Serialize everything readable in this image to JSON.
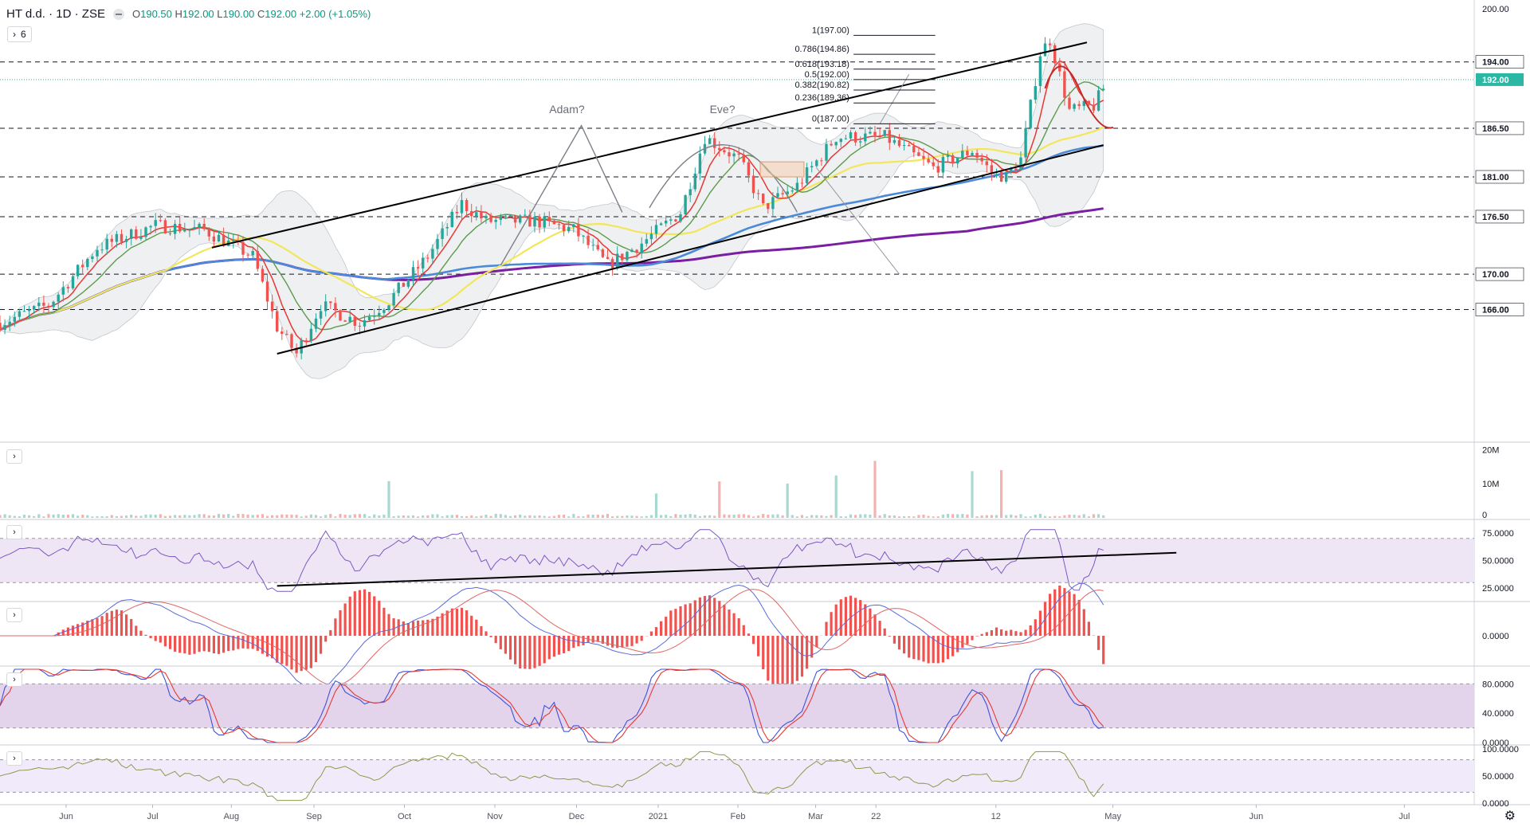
{
  "header": {
    "symbol": "HT d.d.",
    "interval": "1D",
    "exchange": "ZSE",
    "open_label": "O",
    "open": "190.50",
    "high_label": "H",
    "high": "192.00",
    "low_label": "L",
    "low": "190.00",
    "close_label": "C",
    "close": "192.00",
    "change": "+2.00 (+1.05%)",
    "indicator_count": "6"
  },
  "chart_data": {
    "type": "candlestick",
    "price_axis_labels": [
      "200.00",
      "166.00"
    ],
    "price_levels": [
      {
        "value": 194.0,
        "label": "194.00"
      },
      {
        "value": 186.5,
        "label": "186.50"
      },
      {
        "value": 181.0,
        "label": "181.00"
      },
      {
        "value": 176.5,
        "label": "176.50"
      },
      {
        "value": 170.0,
        "label": "170.00"
      },
      {
        "value": 166.0,
        "label": "166.00"
      }
    ],
    "last_price": {
      "value": 192.0,
      "label": "192.00"
    },
    "price_range": [
      151,
      201
    ],
    "x_ticks": [
      "Jun",
      "Jul",
      "Aug",
      "Sep",
      "Oct",
      "Nov",
      "Dec",
      "2021",
      "Feb",
      "Mar",
      "22",
      "12",
      "May",
      "Jun",
      "Jul"
    ],
    "fib_levels": [
      {
        "value": 197.0,
        "label": "1(197.00)"
      },
      {
        "value": 194.86,
        "label": "0.786(194.86)"
      },
      {
        "value": 193.18,
        "label": "0.618(193.18)"
      },
      {
        "value": 192.0,
        "label": "0.5(192.00)"
      },
      {
        "value": 190.82,
        "label": "0.382(190.82)"
      },
      {
        "value": 189.36,
        "label": "0.236(189.36)"
      },
      {
        "value": 187.0,
        "label": "0(187.00)"
      }
    ],
    "annotations": [
      "Adam?",
      "Eve?"
    ],
    "anchors": [
      {
        "x": 0.0,
        "y": 164.5
      },
      {
        "x": 0.05,
        "y": 166.5
      },
      {
        "x": 0.1,
        "y": 173
      },
      {
        "x": 0.16,
        "y": 175.5
      },
      {
        "x": 0.21,
        "y": 175
      },
      {
        "x": 0.26,
        "y": 172
      },
      {
        "x": 0.285,
        "y": 164
      },
      {
        "x": 0.305,
        "y": 161
      },
      {
        "x": 0.33,
        "y": 166.5
      },
      {
        "x": 0.37,
        "y": 164.5
      },
      {
        "x": 0.4,
        "y": 167
      },
      {
        "x": 0.44,
        "y": 172
      },
      {
        "x": 0.475,
        "y": 178
      },
      {
        "x": 0.5,
        "y": 176
      },
      {
        "x": 0.55,
        "y": 176
      },
      {
        "x": 0.59,
        "y": 175
      },
      {
        "x": 0.625,
        "y": 171
      },
      {
        "x": 0.66,
        "y": 173.5
      },
      {
        "x": 0.7,
        "y": 177
      },
      {
        "x": 0.725,
        "y": 185.5
      },
      {
        "x": 0.76,
        "y": 183
      },
      {
        "x": 0.785,
        "y": 177.5
      },
      {
        "x": 0.82,
        "y": 180
      },
      {
        "x": 0.86,
        "y": 185.5
      },
      {
        "x": 0.91,
        "y": 185.5
      },
      {
        "x": 0.96,
        "y": 182
      },
      {
        "x": 1.0,
        "y": 184
      },
      {
        "x": 1.02,
        "y": 181.5
      },
      {
        "x": 1.035,
        "y": 181
      },
      {
        "x": 1.05,
        "y": 183
      },
      {
        "x": 1.07,
        "y": 195
      },
      {
        "x": 1.08,
        "y": 196.5
      },
      {
        "x": 1.1,
        "y": 188.5
      },
      {
        "x": 1.125,
        "y": 189
      },
      {
        "x": 1.14,
        "y": 192
      }
    ],
    "volume_axis_labels": [
      "20M",
      "10M",
      "0"
    ],
    "rsi_axis_labels": [
      "75.0000",
      "50.0000",
      "25.0000"
    ],
    "macd_axis_labels": [
      "0.0000"
    ],
    "stoch_axis_labels": [
      "80.0000",
      "40.0000",
      "0.0000"
    ],
    "mfi_axis_labels": [
      "100.0000",
      "50.0000",
      "0.0000"
    ],
    "colors": {
      "up": "#26a69a",
      "down": "#ef5350",
      "ma_red": "#e53935",
      "ma_green": "#5d9b4c",
      "ma_yellow": "#f2e65b",
      "ma_blue": "#4a8ad8",
      "ma_purple": "#7b1fa2",
      "band": "#dcdee3",
      "rsi_band": "#eee6f5",
      "stoch_band": "#e3d4ec",
      "mfi_band": "#f1eafa",
      "last_price_bg": "#2ab8a5"
    }
  }
}
